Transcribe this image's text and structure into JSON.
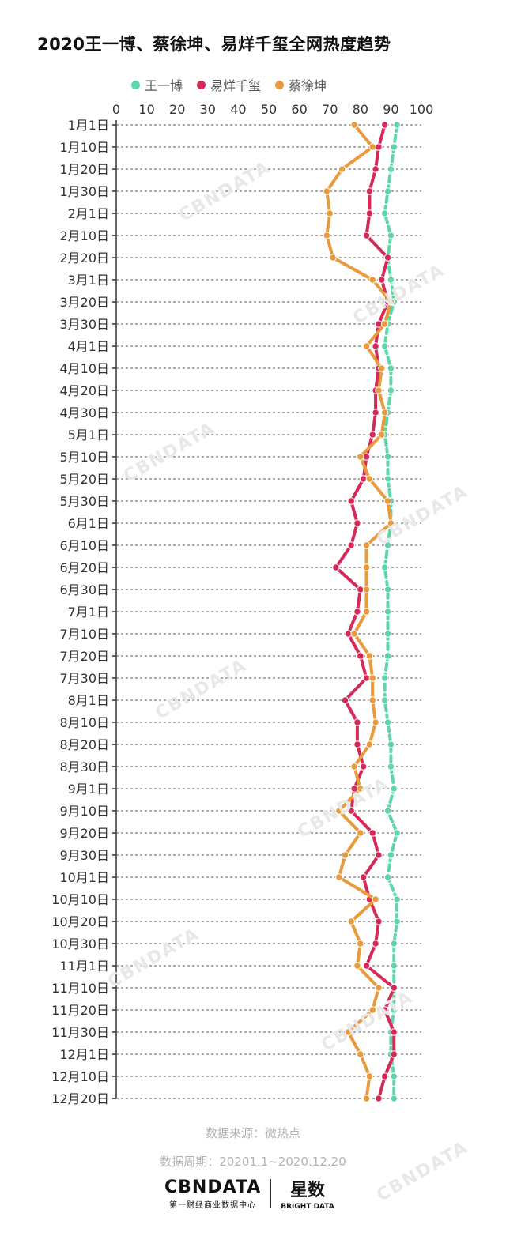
{
  "title": "2020王一博、蔡徐坤、易烊千玺全网热度趋势",
  "source_label": "数据来源：微热点",
  "period_label": "数据周期：20201.1~2020.12.20",
  "brand": {
    "left_logo": "CBNDATA",
    "left_sub": "第一财经商业数据中心",
    "right_logo": "星数",
    "right_sub": "BRIGHT DATA"
  },
  "watermark": "CBNDATA",
  "colors": {
    "wang": "#5ed6a7",
    "yi": "#d6295a",
    "cai": "#e89a3c",
    "grid": "#555555"
  },
  "chart_data": {
    "type": "line",
    "orientation": "vertical",
    "title": "2020王一博、蔡徐坤、易烊千玺全网热度趋势",
    "xlim": [
      0,
      100
    ],
    "xticks": [
      0,
      10,
      20,
      30,
      40,
      50,
      60,
      70,
      80,
      90,
      100
    ],
    "legend_position": "top",
    "grid": true,
    "categories": [
      "1月1日",
      "1月10日",
      "1月20日",
      "1月30日",
      "2月1日",
      "2月10日",
      "2月20日",
      "3月1日",
      "3月20日",
      "3月30日",
      "4月1日",
      "4月10日",
      "4月20日",
      "4月30日",
      "5月1日",
      "5月10日",
      "5月20日",
      "5月30日",
      "6月1日",
      "6月10日",
      "6月20日",
      "6月30日",
      "7月1日",
      "7月10日",
      "7月20日",
      "7月30日",
      "8月1日",
      "8月10日",
      "8月20日",
      "8月30日",
      "9月1日",
      "9月10日",
      "9月20日",
      "9月30日",
      "10月1日",
      "10月10日",
      "10月20日",
      "10月30日",
      "11月1日",
      "11月10日",
      "11月20日",
      "11月30日",
      "12月1日",
      "12月10日",
      "12月20日"
    ],
    "series": [
      {
        "name": "王一博",
        "color": "#5ed6a7",
        "values": [
          92,
          91,
          90,
          89,
          88,
          90,
          89,
          90,
          91,
          89,
          88,
          90,
          90,
          89,
          88,
          89,
          89,
          90,
          90,
          89,
          88,
          89,
          89,
          89,
          89,
          88,
          88,
          89,
          90,
          90,
          91,
          89,
          92,
          90,
          89,
          92,
          92,
          91,
          91,
          91,
          91,
          90,
          90,
          91,
          91
        ]
      },
      {
        "name": "易烊千玺",
        "color": "#d6295a",
        "values": [
          88,
          86,
          85,
          83,
          83,
          82,
          89,
          87,
          89,
          86,
          85,
          86,
          85,
          85,
          84,
          82,
          81,
          77,
          79,
          77,
          72,
          80,
          79,
          76,
          80,
          82,
          75,
          79,
          79,
          81,
          78,
          77,
          84,
          86,
          81,
          83,
          86,
          85,
          82,
          91,
          88,
          91,
          91,
          88,
          86
        ]
      },
      {
        "name": "蔡徐坤",
        "color": "#e89a3c",
        "values": [
          78,
          84,
          74,
          69,
          70,
          69,
          71,
          84,
          90,
          88,
          82,
          87,
          86,
          88,
          87,
          80,
          83,
          89,
          90,
          82,
          82,
          82,
          82,
          78,
          83,
          84,
          84,
          85,
          83,
          78,
          80,
          73,
          80,
          75,
          73,
          85,
          77,
          80,
          79,
          86,
          84,
          76,
          80,
          83,
          82
        ]
      }
    ]
  }
}
